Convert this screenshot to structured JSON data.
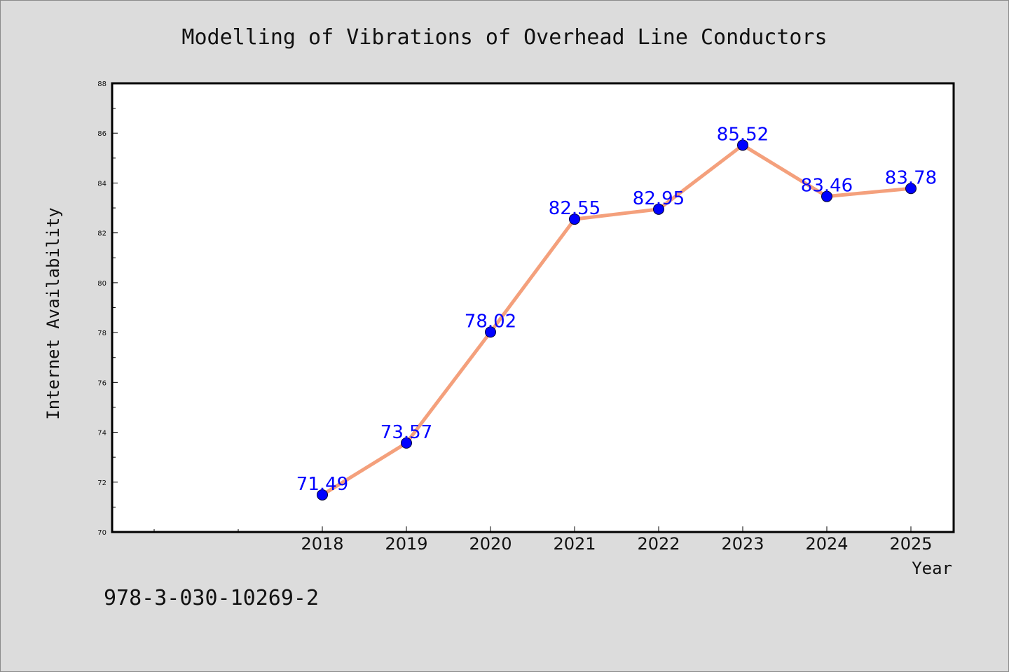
{
  "chart_data": {
    "type": "line",
    "title": "Modelling of Vibrations of Overhead Line Conductors",
    "xlabel": "Year",
    "ylabel": "Internet Availability",
    "categories": [
      "2018",
      "2019",
      "2020",
      "2021",
      "2022",
      "2023",
      "2024",
      "2025"
    ],
    "series": [
      {
        "values": [
          71.49,
          73.57,
          78.02,
          82.55,
          82.95,
          85.52,
          83.46,
          83.78
        ],
        "labels": [
          "71.49",
          "73.57",
          "78.02",
          "82.55",
          "82.95",
          "85.52",
          "83.46",
          "83.78"
        ]
      }
    ],
    "ylim": [
      70,
      88
    ],
    "yticks": [
      "70",
      "72",
      "74",
      "76",
      "78",
      "80",
      "82",
      "84",
      "86",
      "88"
    ],
    "grid": false,
    "legend": "none",
    "colors": {
      "line": "#f4a07c",
      "marker": "#0000ff",
      "data_label": "#0000ff",
      "background": "#dcdcdc",
      "plot_area": "#ffffff"
    }
  },
  "footer": {
    "isbn": "978-3-030-10269-2"
  }
}
